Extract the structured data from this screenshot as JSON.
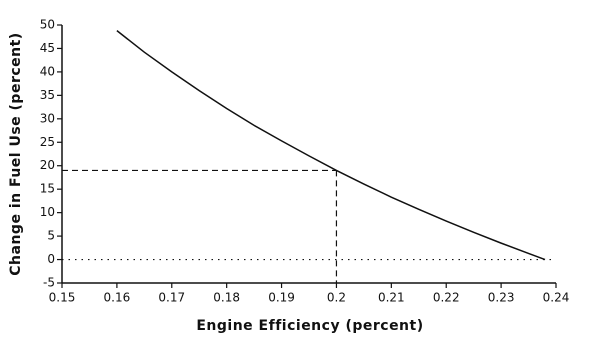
{
  "chart_data": {
    "type": "line",
    "xlabel": "Engine Efficiency (percent)",
    "ylabel": "Change in Fuel Use (percent)",
    "x": [
      0.16,
      0.165,
      0.17,
      0.175,
      0.18,
      0.185,
      0.19,
      0.195,
      0.2,
      0.205,
      0.21,
      0.215,
      0.22,
      0.225,
      0.23,
      0.235,
      0.238
    ],
    "series": [
      {
        "color": "#111111",
        "values": [
          48.8,
          44.2,
          40.0,
          36.0,
          32.2,
          28.6,
          25.3,
          22.1,
          19.0,
          16.1,
          13.3,
          10.7,
          8.2,
          5.8,
          3.5,
          1.3,
          0.0
        ]
      }
    ],
    "highlight_point": {
      "x": 0.2,
      "y": 19.0
    },
    "reference_line_y": 0,
    "xlim": [
      0.15,
      0.24
    ],
    "ylim": [
      -5,
      50
    ],
    "xticks": [
      0.15,
      0.16,
      0.17,
      0.18,
      0.19,
      0.2,
      0.21,
      0.22,
      0.23,
      0.24
    ],
    "yticks": [
      -5,
      0,
      5,
      10,
      15,
      20,
      25,
      30,
      35,
      40,
      45,
      50
    ],
    "grid": false
  }
}
